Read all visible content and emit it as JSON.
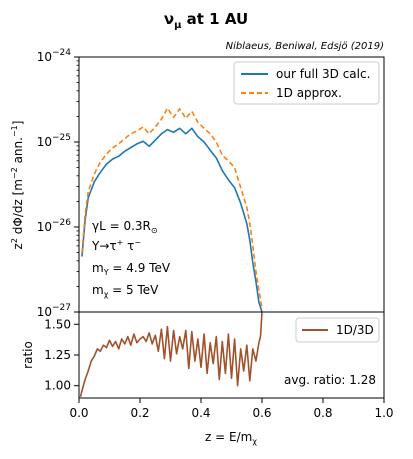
{
  "title_main": "ν",
  "title_sub": "μ",
  "title_rest": " at 1 AU",
  "citation": "Niblaeus, Beniwal, Edsjö (2019)",
  "chart_data": [
    {
      "type": "line",
      "panel": "top",
      "yscale": "log",
      "ylim": [
        1e-27,
        1e-24
      ],
      "xlim": [
        0.0,
        1.0
      ],
      "ylabel": {
        "lead": "z",
        "lead_sup": "2",
        "mid": " dΦ/dz [m",
        "mid_sup": "−2",
        "rest": " ann.",
        "rest_sup": "−1",
        "close": "]"
      },
      "yticks": [
        {
          "value": 1e-27,
          "base": "10",
          "exp": "−27"
        },
        {
          "value": 1e-26,
          "base": "10",
          "exp": "−26"
        },
        {
          "value": 1e-25,
          "base": "10",
          "exp": "−25"
        },
        {
          "value": 1e-24,
          "base": "10",
          "exp": "−24"
        }
      ],
      "legend_position": "top-right",
      "annotations": [
        {
          "main": "γL = 0.3R",
          "sub": "⊙"
        },
        {
          "main": "Υ→τ",
          "sup": "+",
          "rest": " τ",
          "sup2": "−"
        },
        {
          "main": "m",
          "sub": "Υ",
          "rest": " = 4.9 TeV"
        },
        {
          "main": "m",
          "sub": "χ",
          "rest": " = 5 TeV"
        }
      ],
      "series": [
        {
          "name": "our full 3D calc.",
          "color": "#1f77b4",
          "style": "solid",
          "x": [
            0.01,
            0.02,
            0.03,
            0.05,
            0.07,
            0.09,
            0.11,
            0.13,
            0.15,
            0.17,
            0.19,
            0.21,
            0.23,
            0.25,
            0.27,
            0.29,
            0.31,
            0.33,
            0.35,
            0.37,
            0.39,
            0.41,
            0.43,
            0.45,
            0.47,
            0.49,
            0.51,
            0.53,
            0.55,
            0.56,
            0.57,
            0.58,
            0.59,
            0.6
          ],
          "y": [
            4.5e-27,
            1.2e-26,
            2.2e-26,
            3.4e-26,
            4.4e-26,
            5.5e-26,
            6.3e-26,
            6.8e-26,
            7.8e-26,
            8.6e-26,
            9.5e-26,
            1.02e-25,
            8.9e-26,
            1.05e-25,
            1.25e-25,
            1.4e-25,
            1.3e-25,
            1.45e-25,
            1.25e-25,
            1.45e-25,
            1.15e-25,
            1e-25,
            8e-26,
            6.5e-26,
            4.6e-26,
            3.6e-26,
            2.9e-26,
            1.9e-26,
            1.1e-26,
            7e-27,
            3.8e-27,
            2.3e-27,
            1.3e-27,
            1e-27
          ]
        },
        {
          "name": "1D approx.",
          "color": "#ff7f0e",
          "style": "dashed",
          "x": [
            0.01,
            0.02,
            0.03,
            0.05,
            0.07,
            0.09,
            0.11,
            0.13,
            0.15,
            0.17,
            0.19,
            0.21,
            0.23,
            0.25,
            0.27,
            0.29,
            0.31,
            0.33,
            0.35,
            0.37,
            0.39,
            0.41,
            0.43,
            0.45,
            0.47,
            0.49,
            0.51,
            0.53,
            0.55,
            0.56,
            0.57,
            0.58,
            0.59,
            0.6
          ],
          "y": [
            5e-27,
            1.4e-26,
            2.6e-26,
            4.2e-26,
            5.8e-26,
            7.2e-26,
            8.5e-26,
            9.5e-26,
            1.1e-25,
            1.25e-25,
            1.35e-25,
            1.5e-25,
            1.25e-25,
            1.5e-25,
            1.85e-25,
            2.5e-25,
            1.95e-25,
            2.45e-25,
            1.9e-25,
            2.3e-25,
            1.7e-25,
            1.45e-25,
            1.25e-25,
            1e-25,
            7e-26,
            6e-26,
            5e-26,
            2.9e-26,
            1.7e-26,
            1.1e-26,
            6e-27,
            3e-27,
            1.8e-27,
            1.1e-27
          ]
        }
      ]
    },
    {
      "type": "line",
      "panel": "bottom",
      "ylim": [
        0.9,
        1.6
      ],
      "xlim": [
        0.0,
        1.0
      ],
      "ylabel": "ratio",
      "xlabel": {
        "main": "z = E/m",
        "sub": "χ"
      },
      "yticks": [
        "1.00",
        "1.25",
        "1.50"
      ],
      "xticks": [
        "0.0",
        "0.2",
        "0.4",
        "0.6",
        "0.8",
        "1.0"
      ],
      "legend_position": "top-right",
      "annotation": "avg. ratio: 1.28",
      "series": [
        {
          "name": "1D/3D",
          "color": "#a0522d",
          "x": [
            0.005,
            0.01,
            0.02,
            0.03,
            0.04,
            0.05,
            0.06,
            0.07,
            0.08,
            0.09,
            0.1,
            0.11,
            0.12,
            0.13,
            0.14,
            0.15,
            0.16,
            0.17,
            0.18,
            0.19,
            0.2,
            0.21,
            0.22,
            0.23,
            0.24,
            0.25,
            0.26,
            0.27,
            0.28,
            0.29,
            0.3,
            0.31,
            0.32,
            0.33,
            0.34,
            0.35,
            0.36,
            0.37,
            0.38,
            0.39,
            0.4,
            0.41,
            0.42,
            0.43,
            0.44,
            0.45,
            0.46,
            0.47,
            0.48,
            0.49,
            0.5,
            0.51,
            0.52,
            0.53,
            0.54,
            0.55,
            0.56,
            0.57,
            0.58,
            0.59,
            0.595,
            0.6
          ],
          "y": [
            0.91,
            0.96,
            1.05,
            1.12,
            1.2,
            1.24,
            1.3,
            1.28,
            1.33,
            1.31,
            1.37,
            1.32,
            1.36,
            1.3,
            1.38,
            1.34,
            1.4,
            1.33,
            1.42,
            1.35,
            1.38,
            1.4,
            1.36,
            1.43,
            1.34,
            1.41,
            1.28,
            1.46,
            1.22,
            1.48,
            1.2,
            1.45,
            1.26,
            1.4,
            1.3,
            1.45,
            1.14,
            1.44,
            1.2,
            1.38,
            1.15,
            1.42,
            1.1,
            1.35,
            1.18,
            1.4,
            1.05,
            1.36,
            1.1,
            1.42,
            1.06,
            1.38,
            1.0,
            1.3,
            1.12,
            1.33,
            1.04,
            1.3,
            1.2,
            1.35,
            1.4,
            1.6
          ]
        }
      ]
    }
  ]
}
